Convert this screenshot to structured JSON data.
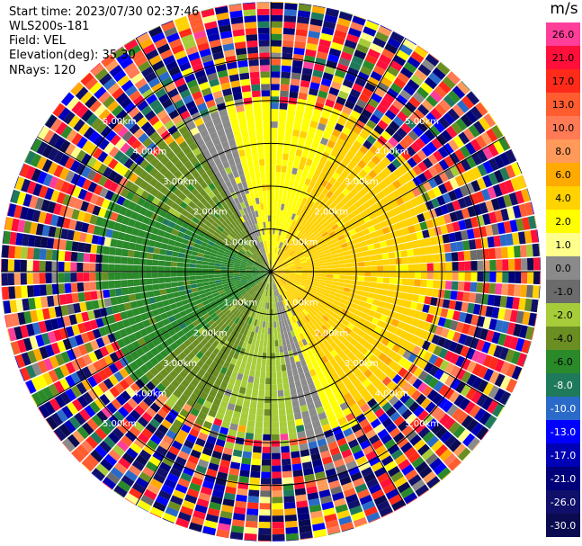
{
  "header": {
    "start_time": "Start time: 2023/07/30 02:37:46",
    "instrument": "WLS200s-181",
    "field": "Field: VEL",
    "elevation": "Elevation(deg): 35.30",
    "nrays": "NRays: 120"
  },
  "colorbar": {
    "unit": "m/s",
    "bins": [
      {
        "label": "26.0",
        "color": "#ff3e9a"
      },
      {
        "label": "21.0",
        "color": "#ff0f3a"
      },
      {
        "label": "17.0",
        "color": "#ff2a1a"
      },
      {
        "label": "13.0",
        "color": "#ff5c30"
      },
      {
        "label": "10.0",
        "color": "#ff7a55"
      },
      {
        "label": "8.0",
        "color": "#ff9a5a"
      },
      {
        "label": "6.0",
        "color": "#ffaa00"
      },
      {
        "label": "4.0",
        "color": "#ffd200"
      },
      {
        "label": "2.0",
        "color": "#ffff00"
      },
      {
        "label": "1.0",
        "color": "#ffff8c"
      },
      {
        "label": "0.0",
        "color": "#8a8a8a"
      },
      {
        "label": "-1.0",
        "color": "#6b6b6b"
      },
      {
        "label": "-2.0",
        "color": "#a6cc3a"
      },
      {
        "label": "-4.0",
        "color": "#6b8e23"
      },
      {
        "label": "-6.0",
        "color": "#2a8a2a"
      },
      {
        "label": "-8.0",
        "color": "#1f7a5c"
      },
      {
        "label": "-10.0",
        "color": "#2a6ac8"
      },
      {
        "label": "-13.0",
        "color": "#0000ff"
      },
      {
        "label": "-17.0",
        "color": "#0000b4"
      },
      {
        "label": "-21.0",
        "color": "#00007a"
      },
      {
        "label": "-26.0",
        "color": "#10106a"
      },
      {
        "label": "-30.0",
        "color": "#0a0a50"
      }
    ]
  },
  "chart_data": {
    "type": "heatmap",
    "subtype": "radar-ppi",
    "field": "VEL",
    "units": "m/s",
    "range_rings_km": [
      1.0,
      2.0,
      3.0,
      4.0,
      5.0
    ],
    "range_ring_labels": [
      "1.00km",
      "2.00km",
      "3.00km",
      "4.00km",
      "5.00km"
    ],
    "max_range_km": 5.5,
    "nrays": 120,
    "spokes_deg": [
      0,
      30,
      60,
      90,
      120,
      150,
      180,
      210,
      240,
      270,
      300,
      330
    ],
    "grid": true,
    "coherent_region_km": 3.2,
    "sectors": [
      {
        "azimuth_from_deg": 0,
        "azimuth_to_deg": 25,
        "value_ms": 2.0
      },
      {
        "azimuth_from_deg": 25,
        "azimuth_to_deg": 150,
        "value_ms": 4.0
      },
      {
        "azimuth_from_deg": 150,
        "azimuth_to_deg": 160,
        "value_ms": 2.0
      },
      {
        "azimuth_from_deg": 160,
        "azimuth_to_deg": 170,
        "value_ms": 0.0
      },
      {
        "azimuth_from_deg": 170,
        "azimuth_to_deg": 200,
        "value_ms": -2.0
      },
      {
        "azimuth_from_deg": 200,
        "azimuth_to_deg": 230,
        "value_ms": -4.0
      },
      {
        "azimuth_from_deg": 230,
        "azimuth_to_deg": 300,
        "value_ms": -6.0
      },
      {
        "azimuth_from_deg": 300,
        "azimuth_to_deg": 330,
        "value_ms": -4.0
      },
      {
        "azimuth_from_deg": 330,
        "azimuth_to_deg": 345,
        "value_ms": 0.0
      },
      {
        "azimuth_from_deg": 345,
        "azimuth_to_deg": 360,
        "value_ms": 2.0
      }
    ],
    "outer_noise": "random all bins beyond ~3.5km"
  }
}
